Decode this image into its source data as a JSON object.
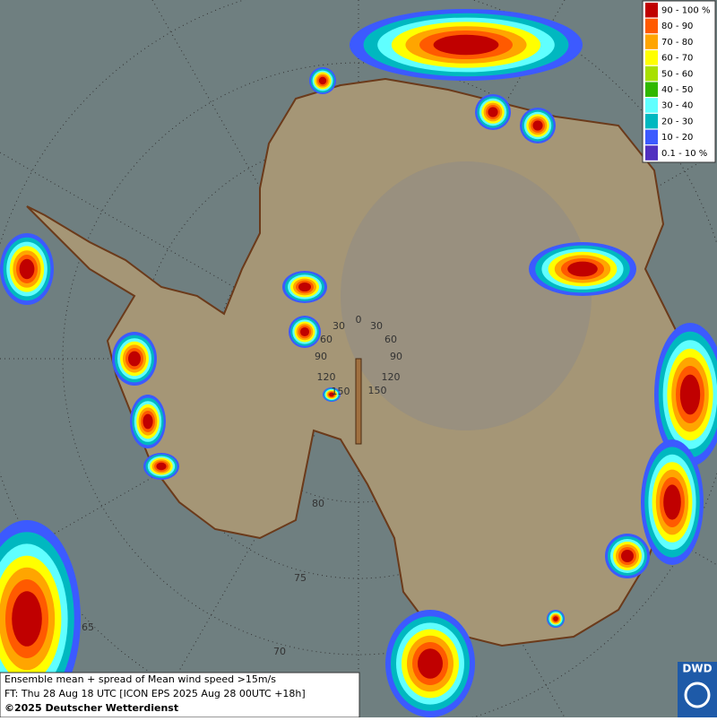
{
  "legend": {
    "items": [
      {
        "label": "90 - 100 %",
        "color": "#c00000"
      },
      {
        "label": "80 - 90",
        "color": "#ff5a00"
      },
      {
        "label": "70 - 80",
        "color": "#ffa500"
      },
      {
        "label": "60 - 70",
        "color": "#ffff00"
      },
      {
        "label": "50 - 60",
        "color": "#a8e000"
      },
      {
        "label": "40 - 50",
        "color": "#30b800"
      },
      {
        "label": "30 - 40",
        "color": "#60ffff"
      },
      {
        "label": "20 - 30",
        "color": "#00b8c0"
      },
      {
        "label": "10 - 20",
        "color": "#3c5aff"
      },
      {
        "label": "0.1 - 10 %",
        "color": "#5030c0"
      }
    ]
  },
  "info": {
    "line1": "Ensemble mean + spread of Mean wind speed >15m/s",
    "line2": "FT: Thu 28 Aug 18 UTC [ICON EPS 2025 Aug 28 00UTC +18h]",
    "line3": "©2025 Deutscher Wetterdienst"
  },
  "logo": "DWD",
  "graticule": {
    "longitude_labels": [
      "0",
      "30",
      "60",
      "90",
      "120",
      "150",
      "30",
      "60",
      "90",
      "120",
      "150"
    ],
    "latitude_labels": [
      "80",
      "75",
      "70",
      "65"
    ]
  }
}
